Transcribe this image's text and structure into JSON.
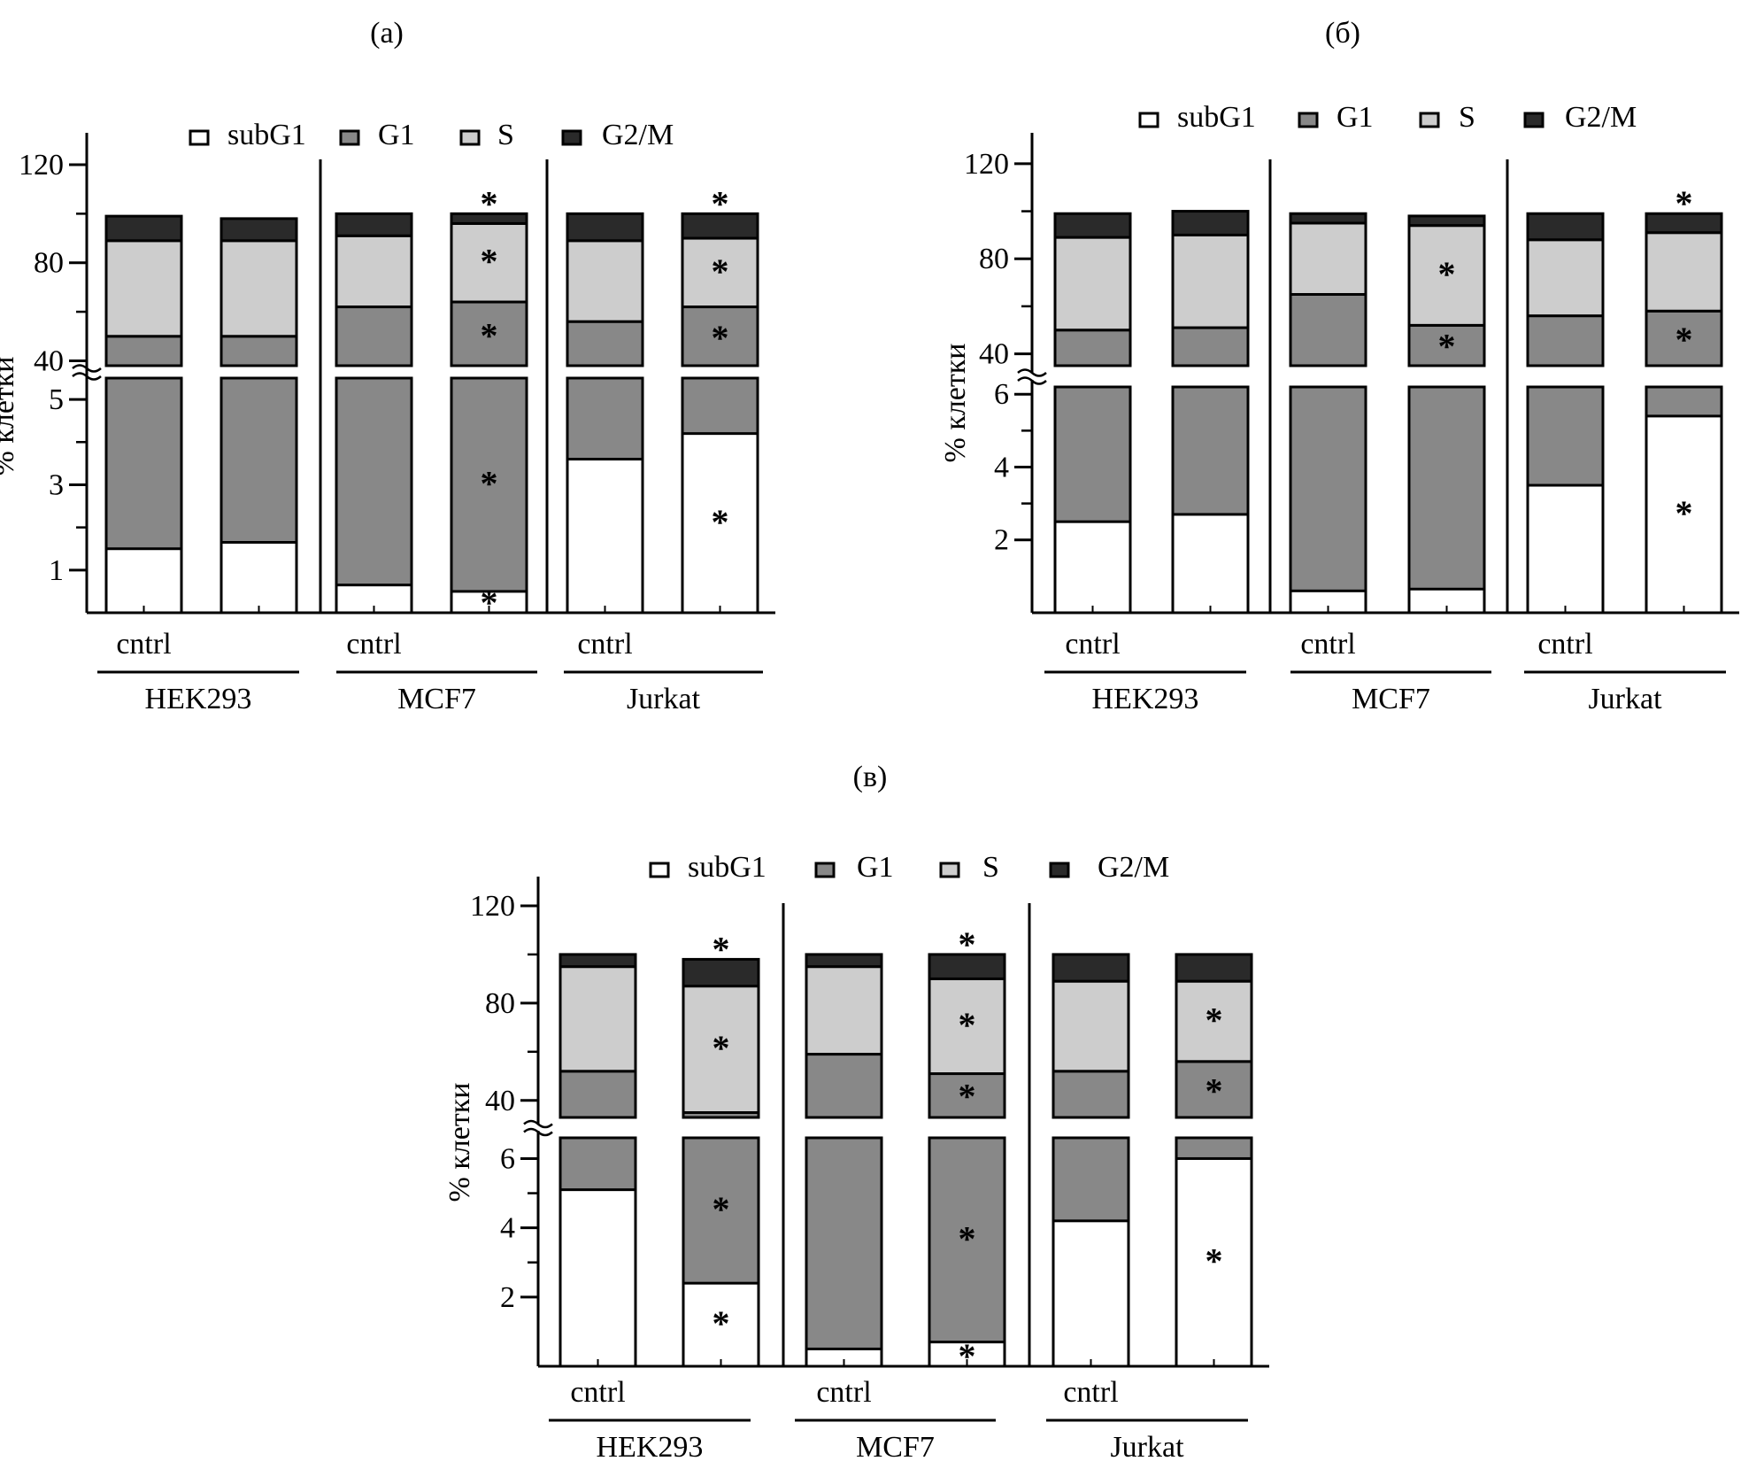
{
  "chart_data": [
    {
      "type": "bar",
      "stacked": true,
      "broken_axis": true,
      "title": "(а)",
      "ylabel": "% клетки",
      "xlabel": "",
      "lower_ylim": [
        0,
        5.5
      ],
      "lower_ticks": [
        "1",
        "3",
        "5"
      ],
      "upper_ylim": [
        38,
        133
      ],
      "upper_ticks": [
        "40",
        "80",
        "120"
      ],
      "legend": [
        "subG1",
        "G1",
        "S",
        "G2/M"
      ],
      "legend_position": "top",
      "groups": [
        {
          "name": "HEK293",
          "control_label": "cntrl",
          "bars": [
            {
              "subG1": 1.5,
              "g1_top": 50,
              "s_top": 89,
              "total": 99,
              "stars": []
            },
            {
              "subG1": 1.65,
              "g1_top": 50,
              "s_top": 89,
              "total": 98,
              "stars": []
            }
          ]
        },
        {
          "name": "MCF7",
          "control_label": "cntrl",
          "bars": [
            {
              "subG1": 0.65,
              "g1_top": 62,
              "s_top": 91,
              "total": 100,
              "stars": []
            },
            {
              "subG1": 0.5,
              "g1_top": 64,
              "s_top": 96,
              "total": 100,
              "stars": [
                "subG1",
                "G1",
                "S",
                "G2/M"
              ]
            }
          ]
        },
        {
          "name": "Jurkat",
          "control_label": "cntrl",
          "bars": [
            {
              "subG1": 3.6,
              "g1_top": 56,
              "s_top": 89,
              "total": 100,
              "stars": []
            },
            {
              "subG1": 4.2,
              "g1_top": 62,
              "s_top": 90,
              "total": 100,
              "stars": [
                "subG1",
                "G1",
                "S",
                "G2/M"
              ]
            }
          ]
        }
      ]
    },
    {
      "type": "bar",
      "stacked": true,
      "broken_axis": true,
      "title": "(б)",
      "ylabel": "% клетки",
      "xlabel": "",
      "lower_ylim": [
        0,
        6.2
      ],
      "lower_ticks": [
        "2",
        "4",
        "6"
      ],
      "upper_ylim": [
        35,
        133
      ],
      "upper_ticks": [
        "40",
        "80",
        "120"
      ],
      "legend": [
        "subG1",
        "G1",
        "S",
        "G2/M"
      ],
      "legend_position": "top",
      "groups": [
        {
          "name": "HEK293",
          "control_label": "cntrl",
          "bars": [
            {
              "subG1": 2.5,
              "g1_top": 50,
              "s_top": 89,
              "total": 99,
              "stars": []
            },
            {
              "subG1": 2.7,
              "g1_top": 51,
              "s_top": 90,
              "total": 100,
              "stars": []
            }
          ]
        },
        {
          "name": "MCF7",
          "control_label": "cntrl",
          "bars": [
            {
              "subG1": 0.6,
              "g1_top": 65,
              "s_top": 95,
              "total": 99,
              "stars": []
            },
            {
              "subG1": 0.65,
              "g1_top": 52,
              "s_top": 94,
              "total": 98,
              "stars": [
                "G1",
                "S"
              ]
            }
          ]
        },
        {
          "name": "Jurkat",
          "control_label": "cntrl",
          "bars": [
            {
              "subG1": 3.5,
              "g1_top": 56,
              "s_top": 88,
              "total": 99,
              "stars": []
            },
            {
              "subG1": 5.4,
              "g1_top": 58,
              "s_top": 91,
              "total": 99,
              "stars": [
                "subG1",
                "G1",
                "G2/M"
              ]
            }
          ]
        }
      ]
    },
    {
      "type": "bar",
      "stacked": true,
      "broken_axis": true,
      "title": "(в)",
      "ylabel": "% клетки",
      "xlabel": "",
      "lower_ylim": [
        0,
        6.6
      ],
      "lower_ticks": [
        "2",
        "4",
        "6"
      ],
      "upper_ylim": [
        33,
        132
      ],
      "upper_ticks": [
        "40",
        "80",
        "120"
      ],
      "legend": [
        "subG1",
        "G1",
        "S",
        "G2/M"
      ],
      "legend_position": "top",
      "groups": [
        {
          "name": "HEK293",
          "control_label": "cntrl",
          "bars": [
            {
              "subG1": 5.1,
              "g1_top": 52,
              "s_top": 95,
              "total": 100,
              "stars": []
            },
            {
              "subG1": 2.4,
              "g1_top": 35,
              "s_top": 87,
              "total": 98,
              "stars": [
                "subG1",
                "G1",
                "S",
                "G2/M"
              ]
            }
          ]
        },
        {
          "name": "MCF7",
          "control_label": "cntrl",
          "bars": [
            {
              "subG1": 0.5,
              "g1_top": 59,
              "s_top": 95,
              "total": 100,
              "stars": []
            },
            {
              "subG1": 0.7,
              "g1_top": 51,
              "s_top": 90,
              "total": 100,
              "stars": [
                "subG1",
                "G1",
                "S",
                "G2/M"
              ]
            }
          ]
        },
        {
          "name": "Jurkat",
          "control_label": "cntrl",
          "bars": [
            {
              "subG1": 4.2,
              "g1_top": 52,
              "s_top": 89,
              "total": 100,
              "stars": []
            },
            {
              "subG1": 6.0,
              "g1_top": 56,
              "s_top": 89,
              "total": 100,
              "stars": [
                "subG1",
                "G1",
                "S"
              ]
            }
          ]
        }
      ]
    }
  ],
  "colors": {
    "subG1": "#ffffff",
    "G1": "#888888",
    "S": "#cdcdcd",
    "G2/M": "#2a2a2a",
    "outline": "#000000"
  },
  "significance_marker": "*"
}
